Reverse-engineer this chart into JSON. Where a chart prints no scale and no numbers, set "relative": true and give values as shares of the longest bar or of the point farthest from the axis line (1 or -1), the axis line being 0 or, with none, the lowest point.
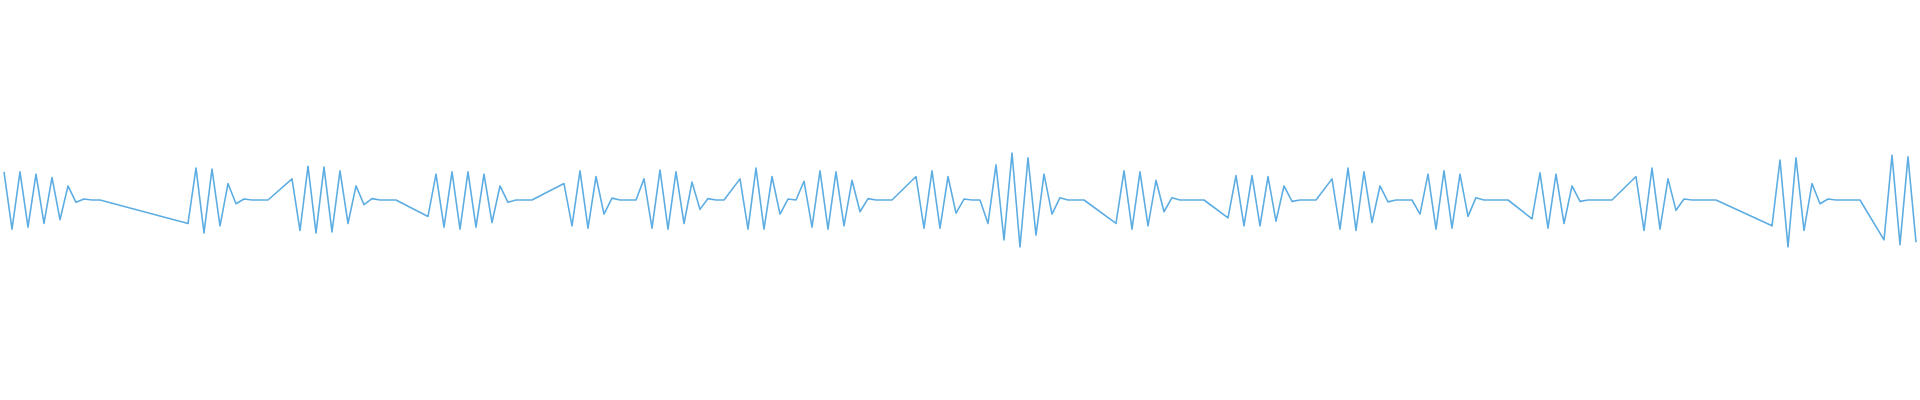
{
  "chart_data": {
    "type": "line",
    "relative": true,
    "marker": "none",
    "categories": [
      null,
      null,
      null,
      null,
      null,
      null,
      null,
      null,
      null,
      null,
      null,
      null,
      null,
      null,
      null,
      null,
      null,
      null,
      null,
      null,
      null,
      null,
      null,
      null,
      null,
      null,
      null,
      null,
      null,
      null,
      null,
      null,
      null,
      null,
      null,
      null,
      null,
      null,
      null,
      null,
      null,
      null,
      null,
      null,
      null,
      null,
      null,
      null,
      null,
      null,
      null,
      null,
      null,
      null,
      null,
      null,
      null,
      null,
      null,
      null,
      null,
      null,
      null,
      null,
      null,
      null,
      null,
      null,
      null,
      null,
      null,
      null,
      null,
      null,
      null,
      null,
      null,
      null,
      null,
      null,
      null,
      null,
      null,
      null,
      null,
      null,
      null,
      null,
      null,
      null,
      null,
      null,
      null,
      null,
      null,
      null,
      null,
      null,
      null,
      null,
      null,
      null,
      null,
      null,
      null,
      null,
      null,
      null,
      null,
      null,
      null,
      null,
      null,
      null,
      null,
      null,
      null,
      null,
      null,
      null,
      null,
      null,
      null,
      null,
      null,
      null,
      null,
      null,
      null,
      null,
      null,
      null,
      null,
      null,
      null,
      null,
      null,
      null,
      null,
      null,
      null,
      null,
      null,
      null,
      null,
      null,
      null,
      null,
      null,
      null,
      null,
      null,
      null,
      null,
      null,
      null,
      null,
      null,
      null,
      null,
      null,
      null,
      null,
      null,
      null,
      null,
      null,
      null,
      null,
      null,
      null,
      null,
      null,
      null,
      null,
      null,
      null,
      null,
      null,
      null,
      null,
      null,
      null,
      null,
      null,
      null,
      null,
      null,
      null,
      null,
      null,
      null,
      null,
      null,
      null,
      null,
      null,
      null,
      null,
      null,
      null,
      null,
      null,
      null,
      null,
      null,
      null,
      null,
      null,
      null,
      null,
      null,
      null,
      null,
      null,
      null,
      null,
      null,
      null,
      null,
      null,
      null,
      null,
      null,
      null,
      null,
      null,
      null,
      null,
      null,
      null,
      null,
      null,
      null,
      null,
      null,
      null,
      null,
      null,
      null
    ],
    "series": [
      {
        "color": "#5dade2",
        "values": [
          0.8,
          0.19,
          0.8,
          0.21,
          0.775,
          0.25,
          0.74,
          0.29,
          0.65,
          0.475,
          0.51,
          0.5,
          0.5,
          null,
          null,
          null,
          null,
          null,
          null,
          null,
          null,
          null,
          null,
          0.25,
          0.84,
          0.15,
          0.83,
          0.225,
          0.675,
          0.46,
          0.51,
          0.5,
          0.5,
          0.5,
          null,
          null,
          0.725,
          0.175,
          0.86,
          0.15,
          0.85,
          0.16,
          0.81,
          0.25,
          0.65,
          0.45,
          0.515,
          0.5,
          0.5,
          0.5,
          null,
          null,
          null,
          0.325,
          0.775,
          0.21,
          0.8,
          0.19,
          0.8,
          0.21,
          0.775,
          0.26,
          0.65,
          0.475,
          0.5,
          0.5,
          0.5,
          null,
          null,
          null,
          0.675,
          0.225,
          0.81,
          0.2,
          0.75,
          0.35,
          0.52,
          0.5,
          0.5,
          0.5,
          0.725,
          0.2,
          0.82,
          0.19,
          0.8,
          0.25,
          0.69,
          0.4,
          0.515,
          0.5,
          0.5,
          null,
          0.725,
          0.19,
          0.84,
          0.19,
          0.75,
          0.35,
          0.51,
          0.5,
          0.7,
          0.21,
          0.81,
          0.19,
          0.8,
          0.225,
          0.71,
          0.375,
          0.515,
          0.5,
          0.5,
          0.5,
          null,
          null,
          0.75,
          0.2,
          0.81,
          0.2,
          0.75,
          0.36,
          0.51,
          0.5,
          0.5,
          0.25,
          0.875,
          0.075,
          1,
          0,
          0.95,
          0.125,
          0.775,
          0.35,
          0.525,
          0.5,
          0.5,
          0.5,
          null,
          null,
          null,
          0.25,
          0.81,
          0.19,
          0.8,
          0.225,
          0.71,
          0.375,
          0.525,
          0.5,
          0.5,
          0.5,
          0.5,
          null,
          null,
          0.31,
          0.76,
          0.225,
          0.76,
          0.225,
          0.75,
          0.275,
          0.65,
          0.485,
          0.5,
          0.5,
          0.5,
          null,
          0.725,
          0.19,
          0.84,
          0.175,
          0.8,
          0.26,
          0.65,
          0.48,
          0.5,
          0.5,
          0.5,
          0.35,
          0.775,
          0.19,
          0.81,
          0.2,
          0.775,
          0.325,
          0.525,
          0.5,
          0.5,
          0.5,
          0.5,
          null,
          null,
          0.3,
          0.79,
          0.2,
          0.775,
          0.25,
          0.65,
          0.485,
          0.5,
          0.5,
          0.5,
          0.5,
          null,
          null,
          0.75,
          0.175,
          0.84,
          0.19,
          0.725,
          0.39,
          0.51,
          0.5,
          0.5,
          0.5,
          0.5,
          null,
          null,
          null,
          null,
          null,
          null,
          0.225,
          0.925,
          0,
          0.95,
          0.175,
          0.675,
          0.46,
          0.51,
          0.5,
          0.5,
          0.5,
          0.5,
          null,
          null,
          0.075,
          0.975,
          0.025,
          0.96,
          0.05
        ]
      }
    ]
  }
}
